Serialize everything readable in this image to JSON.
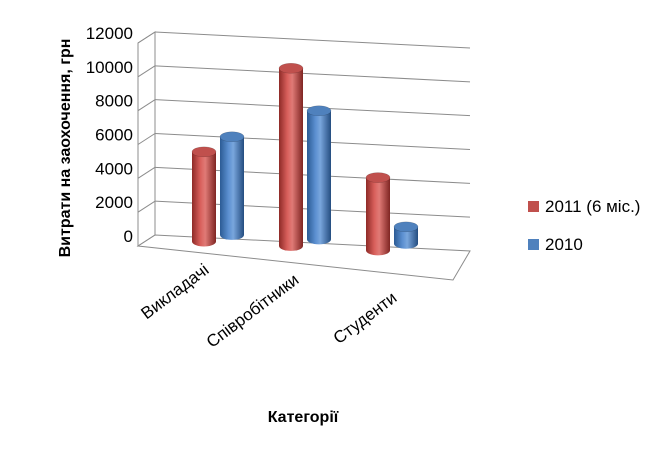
{
  "chart_data": {
    "type": "bar",
    "style": "3d-cylinder",
    "title": "",
    "xlabel": "Категорії",
    "ylabel": "Витрати на заохочення, грн",
    "categories": [
      "Викладачі",
      "Співробітники",
      "Студенти"
    ],
    "series": [
      {
        "name": "2011 (6 міс.)",
        "color": "#c0504d",
        "values": [
          5300,
          10500,
          4300
        ]
      },
      {
        "name": "2010",
        "color": "#4f81bd",
        "values": [
          5800,
          7600,
          1000
        ]
      }
    ],
    "ylim": [
      0,
      12000
    ],
    "yticks": [
      "0",
      "2000",
      "4000",
      "6000",
      "8000",
      "10000",
      "12000"
    ],
    "grid": true,
    "legend": "right"
  }
}
